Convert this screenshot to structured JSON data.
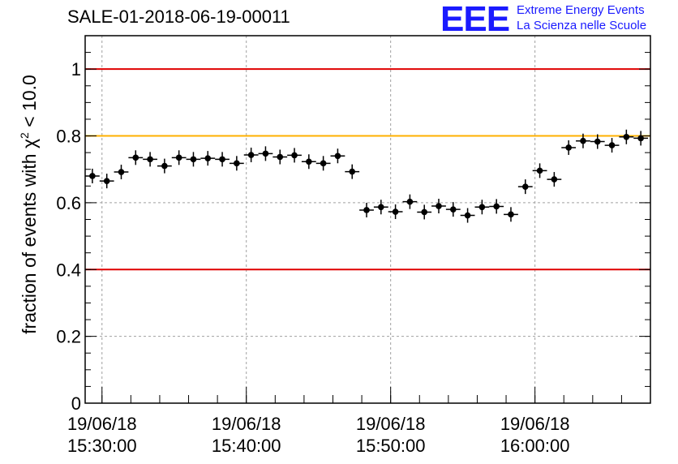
{
  "header": {
    "title": "SALE-01-2018-06-19-00011",
    "logo_mark": "EEE",
    "logo_line1": "Extreme Energy Events",
    "logo_line2": "La Scienza nelle Scuole"
  },
  "chart_data": {
    "type": "scatter",
    "ylabel_pre": "fraction of events with χ",
    "ylabel_sup": "2",
    "ylabel_post": " < 10.0",
    "ylim": [
      0,
      1.1
    ],
    "yticks": [
      0,
      0.2,
      0.4,
      0.6,
      0.8,
      1
    ],
    "ytick_labels": [
      "0",
      "0.2",
      "0.4",
      "0.6",
      "0.8",
      "1"
    ],
    "xlim": [
      "2018-06-19 15:28:50",
      "2018-06-19 16:08:00"
    ],
    "xtick_labels": [
      {
        "time": "2018-06-19 15:30:00",
        "date": "19/06/18",
        "clock": "15:30:00"
      },
      {
        "time": "2018-06-19 15:40:00",
        "date": "19/06/18",
        "clock": "15:40:00"
      },
      {
        "time": "2018-06-19 15:50:00",
        "date": "19/06/18",
        "clock": "15:50:00"
      },
      {
        "time": "2018-06-19 16:00:00",
        "date": "19/06/18",
        "clock": "16:00:00"
      }
    ],
    "reference_lines": [
      {
        "y": 1.0,
        "color": "#e00000"
      },
      {
        "y": 0.8,
        "color": "#ffb000"
      },
      {
        "y": 0.4,
        "color": "#e00000"
      }
    ],
    "grid": true,
    "marker_color": "#000000",
    "points": [
      {
        "x": "2018-06-19 15:29:20",
        "y": 0.68
      },
      {
        "x": "2018-06-19 15:30:20",
        "y": 0.665
      },
      {
        "x": "2018-06-19 15:31:20",
        "y": 0.692
      },
      {
        "x": "2018-06-19 15:32:20",
        "y": 0.735
      },
      {
        "x": "2018-06-19 15:33:20",
        "y": 0.73
      },
      {
        "x": "2018-06-19 15:34:20",
        "y": 0.71
      },
      {
        "x": "2018-06-19 15:35:20",
        "y": 0.735
      },
      {
        "x": "2018-06-19 15:36:20",
        "y": 0.73
      },
      {
        "x": "2018-06-19 15:37:20",
        "y": 0.733
      },
      {
        "x": "2018-06-19 15:38:20",
        "y": 0.73
      },
      {
        "x": "2018-06-19 15:39:20",
        "y": 0.718
      },
      {
        "x": "2018-06-19 15:40:20",
        "y": 0.743
      },
      {
        "x": "2018-06-19 15:41:20",
        "y": 0.747
      },
      {
        "x": "2018-06-19 15:42:20",
        "y": 0.737
      },
      {
        "x": "2018-06-19 15:43:20",
        "y": 0.742
      },
      {
        "x": "2018-06-19 15:44:20",
        "y": 0.723
      },
      {
        "x": "2018-06-19 15:45:20",
        "y": 0.718
      },
      {
        "x": "2018-06-19 15:46:20",
        "y": 0.74
      },
      {
        "x": "2018-06-19 15:47:20",
        "y": 0.693
      },
      {
        "x": "2018-06-19 15:48:20",
        "y": 0.578
      },
      {
        "x": "2018-06-19 15:49:20",
        "y": 0.587
      },
      {
        "x": "2018-06-19 15:50:20",
        "y": 0.573
      },
      {
        "x": "2018-06-19 15:51:20",
        "y": 0.603
      },
      {
        "x": "2018-06-19 15:52:20",
        "y": 0.572
      },
      {
        "x": "2018-06-19 15:53:20",
        "y": 0.59
      },
      {
        "x": "2018-06-19 15:54:20",
        "y": 0.58
      },
      {
        "x": "2018-06-19 15:55:20",
        "y": 0.562
      },
      {
        "x": "2018-06-19 15:56:20",
        "y": 0.587
      },
      {
        "x": "2018-06-19 15:57:20",
        "y": 0.589
      },
      {
        "x": "2018-06-19 15:58:20",
        "y": 0.565
      },
      {
        "x": "2018-06-19 15:59:20",
        "y": 0.648
      },
      {
        "x": "2018-06-19 16:00:20",
        "y": 0.696
      },
      {
        "x": "2018-06-19 16:01:20",
        "y": 0.67
      },
      {
        "x": "2018-06-19 16:02:20",
        "y": 0.765
      },
      {
        "x": "2018-06-19 16:03:20",
        "y": 0.785
      },
      {
        "x": "2018-06-19 16:04:20",
        "y": 0.783
      },
      {
        "x": "2018-06-19 16:05:20",
        "y": 0.772
      },
      {
        "x": "2018-06-19 16:06:20",
        "y": 0.797
      },
      {
        "x": "2018-06-19 16:07:20",
        "y": 0.793
      }
    ]
  }
}
